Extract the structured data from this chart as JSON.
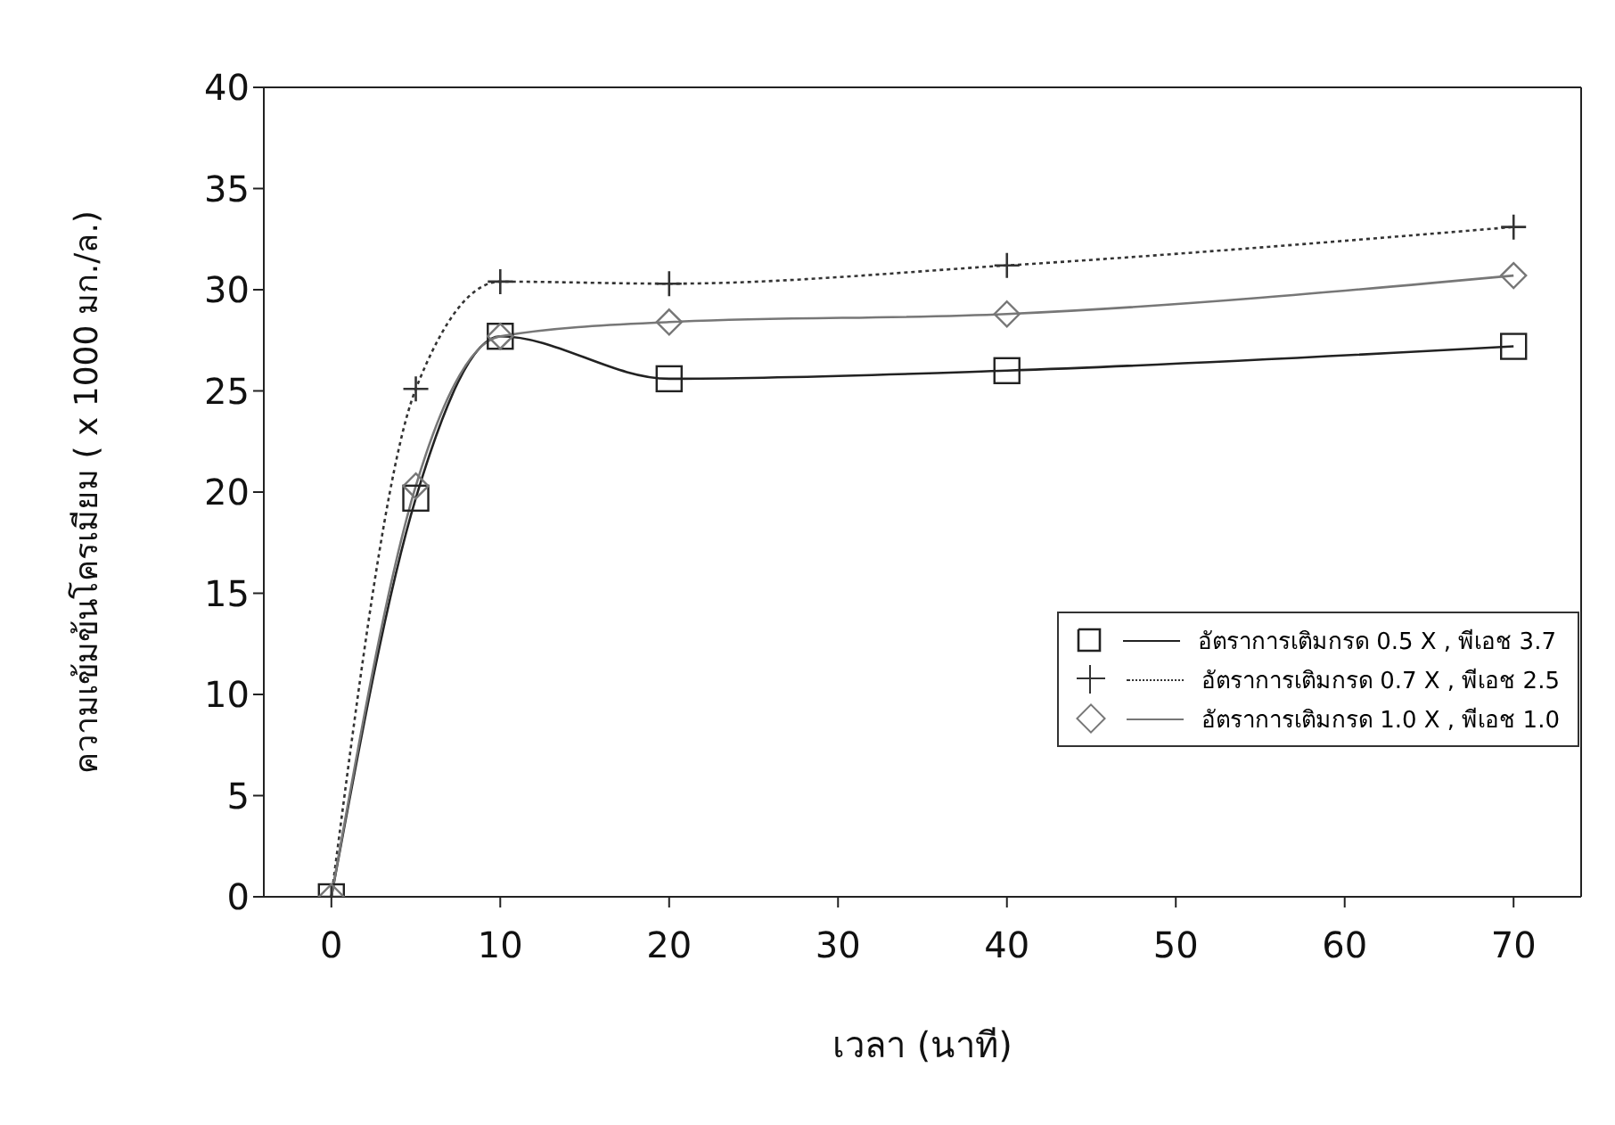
{
  "chart_data": {
    "type": "line",
    "xlabel": "เวลา (นาที)",
    "ylabel": "ความเข้มข้นโครเมียม ( x 1000 มก./ล.)",
    "x": [
      0,
      5,
      10,
      20,
      40,
      70
    ],
    "series": [
      {
        "name": "อัตราการเติมกรด 0.5 X , พีเอช 3.7",
        "color": "#222222",
        "marker": "square",
        "line_style": "solid",
        "values": [
          0,
          19.7,
          27.7,
          25.6,
          26.0,
          27.2
        ]
      },
      {
        "name": "อัตราการเติมกรด 0.7 X , พีเอช 2.5",
        "color": "#333333",
        "marker": "cross",
        "line_style": "dotted",
        "values": [
          0,
          25.1,
          30.4,
          30.3,
          31.2,
          33.1
        ]
      },
      {
        "name": "อัตราการเติมกรด 1.0 X , พีเอช 1.0",
        "color": "#777777",
        "marker": "diamond",
        "line_style": "solid",
        "values": [
          0,
          20.3,
          27.7,
          28.4,
          28.8,
          30.7
        ]
      }
    ],
    "xlim": [
      -4,
      74
    ],
    "xticks": [
      0,
      10,
      20,
      30,
      40,
      50,
      60,
      70
    ],
    "ylim": [
      0,
      40
    ],
    "yticks": [
      0,
      5,
      10,
      15,
      20,
      25,
      30,
      35,
      40
    ],
    "grid": false,
    "legend": "bottom right"
  }
}
